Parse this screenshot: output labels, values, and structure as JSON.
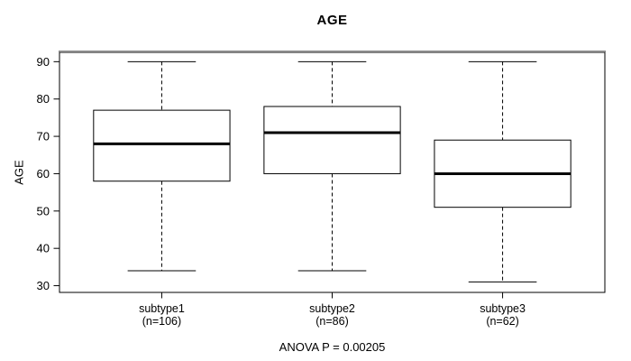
{
  "title": "AGE",
  "y_axis": {
    "label": "AGE"
  },
  "x_axis": {
    "groups": [
      {
        "label": "subtype1",
        "sublabel": "(n=106)"
      },
      {
        "label": "subtype2",
        "sublabel": "(n=86)"
      },
      {
        "label": "subtype3",
        "sublabel": "(n=62)"
      }
    ]
  },
  "footer": {
    "anova_text": "ANOVA P = 0.00205"
  },
  "chart_data": {
    "type": "boxplot",
    "title": "AGE",
    "xlabel": "",
    "ylabel": "AGE",
    "ylim": [
      28.2,
      92.5
    ],
    "yticks": [
      90,
      80,
      70,
      60,
      50,
      40,
      30
    ],
    "grid": false,
    "categories": [
      "subtype1",
      "subtype2",
      "subtype3"
    ],
    "series": [
      {
        "name": "subtype1",
        "n": 106,
        "whisker_low": 34,
        "q1": 58,
        "median": 68,
        "q3": 77,
        "whisker_high": 90
      },
      {
        "name": "subtype2",
        "n": 86,
        "whisker_low": 34,
        "q1": 60,
        "median": 71,
        "q3": 78,
        "whisker_high": 90
      },
      {
        "name": "subtype3",
        "n": 62,
        "whisker_low": 31,
        "q1": 51,
        "median": 60,
        "q3": 69,
        "whisker_high": 90
      }
    ],
    "annotation": "ANOVA P = 0.00205",
    "colors": {
      "line": "#000000",
      "box_fill": "#ffffff",
      "background": "#ffffff",
      "border_highlight": "#8a8a8a"
    }
  }
}
